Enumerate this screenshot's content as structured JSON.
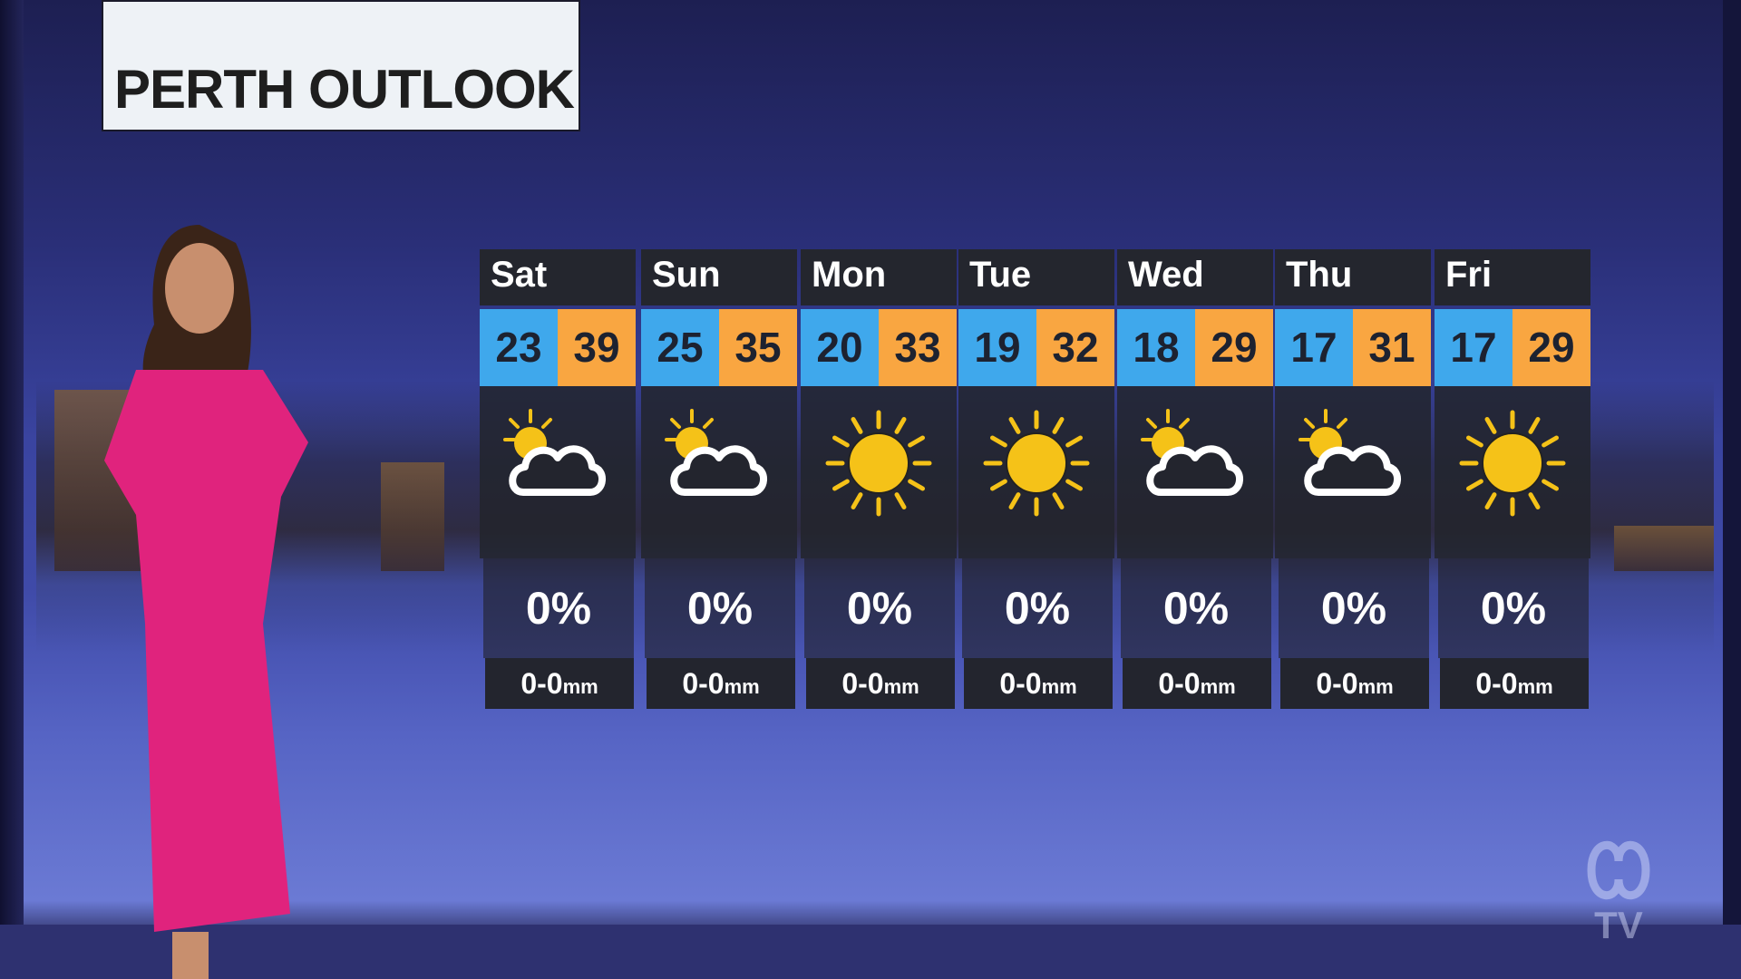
{
  "title": "PERTH OUTLOOK",
  "colors": {
    "min_temp": "#3fa8ec",
    "max_temp": "#f9a641",
    "card": "#24262e"
  },
  "forecast": [
    {
      "day": "Sat",
      "min": "23",
      "max": "39",
      "icon": "partly-cloudy-icon",
      "rain_chance": "0%",
      "rain_amount": "0-0",
      "unit": "mm"
    },
    {
      "day": "Sun",
      "min": "25",
      "max": "35",
      "icon": "partly-cloudy-icon",
      "rain_chance": "0%",
      "rain_amount": "0-0",
      "unit": "mm"
    },
    {
      "day": "Mon",
      "min": "20",
      "max": "33",
      "icon": "sun-icon",
      "rain_chance": "0%",
      "rain_amount": "0-0",
      "unit": "mm"
    },
    {
      "day": "Tue",
      "min": "19",
      "max": "32",
      "icon": "sun-icon",
      "rain_chance": "0%",
      "rain_amount": "0-0",
      "unit": "mm"
    },
    {
      "day": "Wed",
      "min": "18",
      "max": "29",
      "icon": "partly-cloudy-icon",
      "rain_chance": "0%",
      "rain_amount": "0-0",
      "unit": "mm"
    },
    {
      "day": "Thu",
      "min": "17",
      "max": "31",
      "icon": "partly-cloudy-icon",
      "rain_chance": "0%",
      "rain_amount": "0-0",
      "unit": "mm"
    },
    {
      "day": "Fri",
      "min": "17",
      "max": "29",
      "icon": "sun-icon",
      "rain_chance": "0%",
      "rain_amount": "0-0",
      "unit": "mm"
    }
  ],
  "logo": "ABC TV"
}
